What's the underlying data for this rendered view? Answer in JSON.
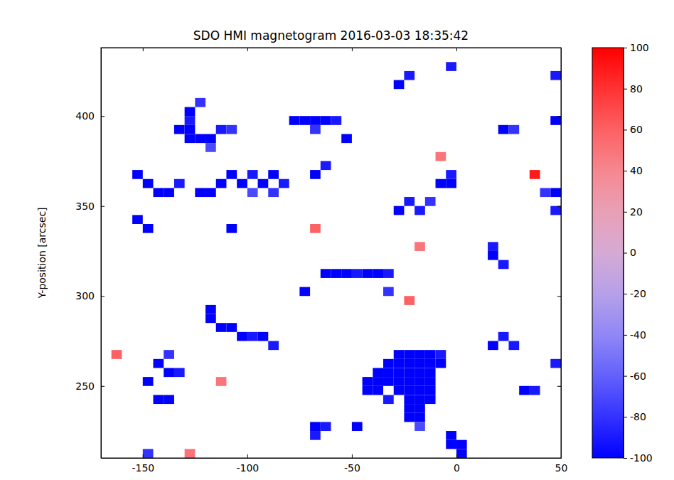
{
  "chart_data": {
    "type": "heatmap",
    "title": "SDO HMI magnetogram 2016-03-03 18:35:42",
    "y_label": "Y-position [arcsec]",
    "xlim": [
      -170,
      50
    ],
    "xticks": [
      -150,
      -100,
      -50,
      0,
      50
    ],
    "ylim": [
      210,
      438
    ],
    "yticks": [
      250,
      300,
      350,
      400
    ],
    "cell_size": 5,
    "cells": [
      [
        -135,
        390,
        -100
      ],
      [
        -130,
        385,
        -100
      ],
      [
        -130,
        390,
        -100
      ],
      [
        -125,
        385,
        -100
      ],
      [
        -120,
        385,
        -100
      ],
      [
        -130,
        395,
        -90
      ],
      [
        -130,
        400,
        -100
      ],
      [
        -125,
        405,
        -80
      ],
      [
        -115,
        390,
        -90
      ],
      [
        -120,
        380,
        -70
      ],
      [
        -155,
        365,
        -100
      ],
      [
        -150,
        360,
        -100
      ],
      [
        -145,
        355,
        -100
      ],
      [
        -140,
        355,
        -100
      ],
      [
        -135,
        360,
        -90
      ],
      [
        -125,
        355,
        -100
      ],
      [
        -120,
        355,
        -100
      ],
      [
        -115,
        360,
        -100
      ],
      [
        -110,
        365,
        -100
      ],
      [
        -105,
        360,
        -100
      ],
      [
        -100,
        365,
        -90
      ],
      [
        -95,
        360,
        -100
      ],
      [
        -90,
        365,
        -100
      ],
      [
        -85,
        360,
        -90
      ],
      [
        -100,
        355,
        -70
      ],
      [
        -90,
        355,
        -80
      ],
      [
        -155,
        340,
        -100
      ],
      [
        -150,
        335,
        -100
      ],
      [
        -110,
        335,
        -100
      ],
      [
        -80,
        395,
        -100
      ],
      [
        -75,
        395,
        -100
      ],
      [
        -70,
        395,
        -100
      ],
      [
        -65,
        395,
        -100
      ],
      [
        -60,
        395,
        -90
      ],
      [
        -70,
        390,
        -80
      ],
      [
        -55,
        385,
        -100
      ],
      [
        -110,
        390,
        -80
      ],
      [
        -70,
        365,
        -100
      ],
      [
        -65,
        370,
        -90
      ],
      [
        -30,
        415,
        -100
      ],
      [
        -25,
        420,
        -90
      ],
      [
        -5,
        425,
        -90
      ],
      [
        20,
        390,
        -100
      ],
      [
        25,
        390,
        -80
      ],
      [
        45,
        395,
        -100
      ],
      [
        45,
        420,
        -90
      ],
      [
        -10,
        360,
        -100
      ],
      [
        -5,
        360,
        -100
      ],
      [
        -5,
        365,
        -90
      ],
      [
        -30,
        345,
        -100
      ],
      [
        -25,
        350,
        -90
      ],
      [
        -20,
        345,
        -90
      ],
      [
        -15,
        350,
        -80
      ],
      [
        45,
        355,
        -100
      ],
      [
        45,
        345,
        -90
      ],
      [
        40,
        355,
        -80
      ],
      [
        -65,
        310,
        -100
      ],
      [
        -60,
        310,
        -100
      ],
      [
        -55,
        310,
        -100
      ],
      [
        -50,
        310,
        -90
      ],
      [
        -45,
        310,
        -100
      ],
      [
        -40,
        310,
        -100
      ],
      [
        -35,
        310,
        -90
      ],
      [
        -75,
        300,
        -100
      ],
      [
        -35,
        300,
        -80
      ],
      [
        15,
        320,
        -100
      ],
      [
        15,
        325,
        -90
      ],
      [
        20,
        315,
        -90
      ],
      [
        -120,
        285,
        -100
      ],
      [
        -120,
        290,
        -100
      ],
      [
        -115,
        280,
        -100
      ],
      [
        -110,
        280,
        -100
      ],
      [
        -105,
        275,
        -100
      ],
      [
        -100,
        275,
        -90
      ],
      [
        -95,
        275,
        -100
      ],
      [
        -90,
        270,
        -90
      ],
      [
        -30,
        265,
        -100
      ],
      [
        -25,
        265,
        -100
      ],
      [
        -20,
        265,
        -100
      ],
      [
        -15,
        265,
        -100
      ],
      [
        -10,
        265,
        -90
      ],
      [
        -35,
        260,
        -100
      ],
      [
        -30,
        260,
        -100
      ],
      [
        -25,
        260,
        -100
      ],
      [
        -20,
        260,
        -100
      ],
      [
        -15,
        260,
        -100
      ],
      [
        -10,
        260,
        -100
      ],
      [
        -40,
        255,
        -100
      ],
      [
        -35,
        255,
        -100
      ],
      [
        -30,
        255,
        -100
      ],
      [
        -25,
        255,
        -100
      ],
      [
        -20,
        255,
        -100
      ],
      [
        -15,
        255,
        -100
      ],
      [
        -45,
        250,
        -100
      ],
      [
        -40,
        250,
        -100
      ],
      [
        -35,
        250,
        -100
      ],
      [
        -30,
        250,
        -100
      ],
      [
        -25,
        250,
        -100
      ],
      [
        -20,
        250,
        -100
      ],
      [
        -15,
        250,
        -100
      ],
      [
        -45,
        245,
        -100
      ],
      [
        -40,
        245,
        -100
      ],
      [
        -30,
        245,
        -100
      ],
      [
        -25,
        245,
        -100
      ],
      [
        -20,
        245,
        -100
      ],
      [
        -15,
        245,
        -100
      ],
      [
        -35,
        240,
        -90
      ],
      [
        -25,
        240,
        -100
      ],
      [
        -20,
        240,
        -100
      ],
      [
        -15,
        240,
        -100
      ],
      [
        -25,
        235,
        -100
      ],
      [
        -20,
        235,
        -100
      ],
      [
        -25,
        230,
        -100
      ],
      [
        -20,
        230,
        -100
      ],
      [
        -20,
        225,
        -70
      ],
      [
        -145,
        260,
        -100
      ],
      [
        -140,
        255,
        -100
      ],
      [
        -150,
        250,
        -100
      ],
      [
        -145,
        240,
        -100
      ],
      [
        -140,
        240,
        -100
      ],
      [
        -135,
        255,
        -90
      ],
      [
        -140,
        265,
        -80
      ],
      [
        -70,
        225,
        -100
      ],
      [
        -65,
        225,
        -90
      ],
      [
        -70,
        220,
        -90
      ],
      [
        -50,
        225,
        -100
      ],
      [
        -5,
        220,
        -100
      ],
      [
        0,
        215,
        -100
      ],
      [
        0,
        210,
        -100
      ],
      [
        -5,
        215,
        -100
      ],
      [
        15,
        270,
        -100
      ],
      [
        20,
        275,
        -90
      ],
      [
        25,
        270,
        -90
      ],
      [
        30,
        245,
        -100
      ],
      [
        35,
        245,
        -90
      ],
      [
        45,
        260,
        -90
      ],
      [
        -150,
        210,
        -80
      ],
      [
        35,
        365,
        90
      ],
      [
        -20,
        325,
        50
      ],
      [
        -165,
        265,
        60
      ],
      [
        -115,
        250,
        50
      ],
      [
        -25,
        295,
        60
      ],
      [
        -70,
        335,
        60
      ],
      [
        -130,
        210,
        50
      ],
      [
        -10,
        375,
        50
      ]
    ],
    "colorbar": {
      "range": [
        -100,
        100
      ],
      "ticks": [
        -100,
        -80,
        -60,
        -40,
        -20,
        0,
        20,
        40,
        60,
        80,
        100
      ]
    }
  }
}
